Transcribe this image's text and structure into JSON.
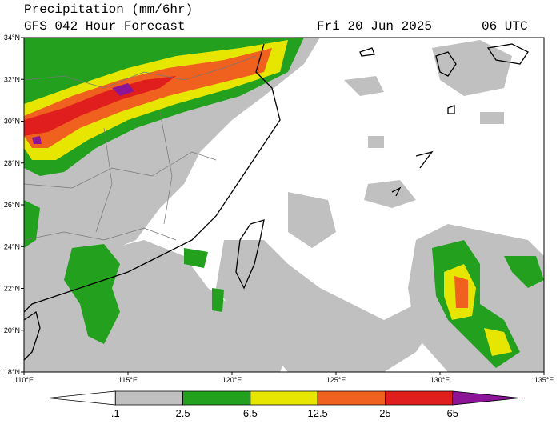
{
  "header": {
    "title": "Precipitation (mm/6hr)",
    "subtitle": "GFS 042 Hour Forecast",
    "date": "Fri 20 Jun 2025",
    "time": "06 UTC"
  },
  "axes": {
    "lat_labels": [
      "34°N",
      "32°N",
      "30°N",
      "28°N",
      "26°N",
      "24°N",
      "22°N",
      "20°N",
      "18°N"
    ],
    "lon_labels": [
      "110°E",
      "115°E",
      "120°E",
      "125°E",
      "130°E",
      "135°E"
    ]
  },
  "legend": {
    "labels": [
      ".1",
      "2.5",
      "6.5",
      "12.5",
      "25",
      "65"
    ],
    "colors": [
      "#ffffff",
      "#c0c0c0",
      "#22a01e",
      "#e6e600",
      "#f0601e",
      "#e01e1e",
      "#8c1496"
    ]
  }
}
